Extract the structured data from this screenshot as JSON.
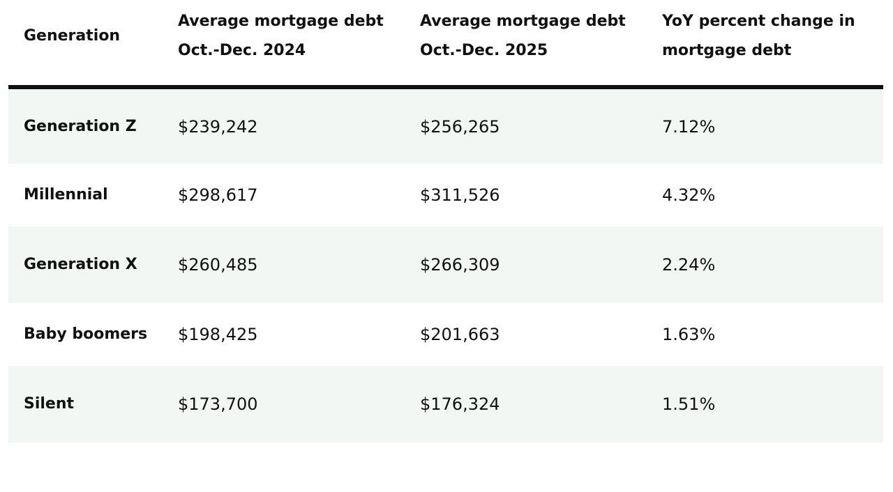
{
  "table": {
    "header": [
      "Generation",
      "Average mortgage debt Oct.-Dec. 2024",
      "Average mortgage debt Oct.-Dec. 2025",
      "YoY percent change in mortgage debt"
    ],
    "rows": [
      [
        "Generation Z",
        "$239,242",
        "$256,265",
        "7.12%"
      ],
      [
        "Millennial",
        "$298,617",
        "$311,526",
        "4.32%"
      ],
      [
        "Generation X",
        "$260,485",
        "$266,309",
        "2.24%"
      ],
      [
        "Baby boomers",
        "$198,425",
        "$201,663",
        "1.63%"
      ],
      [
        "Silent",
        "$173,700",
        "$176,324",
        "1.51%"
      ]
    ]
  }
}
